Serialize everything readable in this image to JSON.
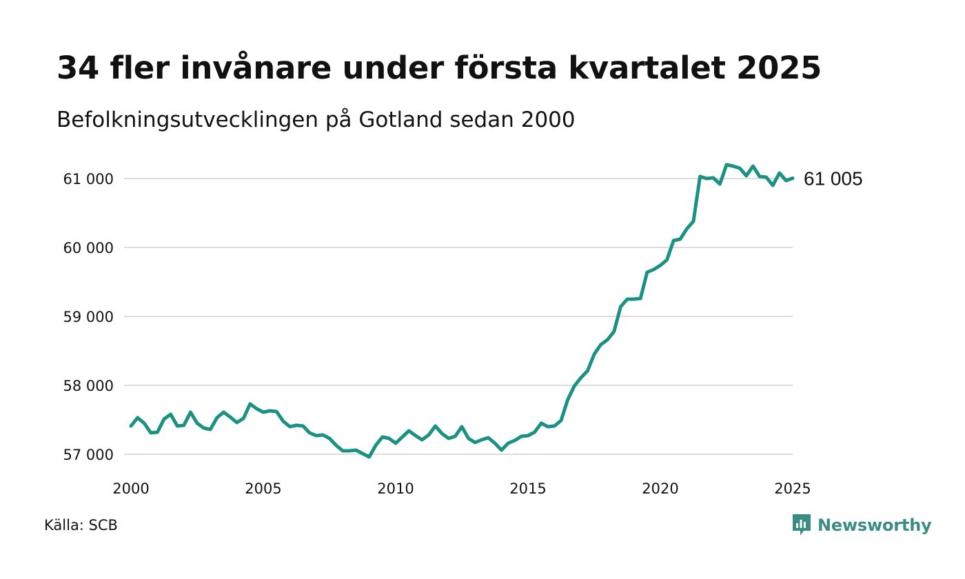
{
  "title": "34 fler invånare under första kvartalet 2025",
  "subtitle": "Befolkningsutvecklingen på Gotland sedan 2000",
  "source": "Källa: SCB",
  "brand": "Newsworthy",
  "colors": {
    "line": "#1a9182",
    "grid": "#dcdcdc",
    "brand": "#3a8c84"
  },
  "chart_data": {
    "type": "line",
    "ylim": [
      57000,
      61000
    ],
    "xlim": [
      2000,
      2025
    ],
    "yticks": [
      {
        "value": 57000,
        "label": "57 000"
      },
      {
        "value": 58000,
        "label": "58 000"
      },
      {
        "value": 59000,
        "label": "59 000"
      },
      {
        "value": 60000,
        "label": "60 000"
      },
      {
        "value": 61000,
        "label": "61 000"
      }
    ],
    "xticks": [
      {
        "value": 2000,
        "label": "2000"
      },
      {
        "value": 2005,
        "label": "2005"
      },
      {
        "value": 2010,
        "label": "2010"
      },
      {
        "value": 2015,
        "label": "2015"
      },
      {
        "value": 2020,
        "label": "2020"
      },
      {
        "value": 2025,
        "label": "2025"
      }
    ],
    "end_label": "61 005",
    "series": [
      {
        "x": [
          2000.0,
          2000.25,
          2000.5,
          2000.75,
          2001.0,
          2001.25,
          2001.5,
          2001.75,
          2002.0,
          2002.25,
          2002.5,
          2002.75,
          2003.0,
          2003.25,
          2003.5,
          2003.75,
          2004.0,
          2004.25,
          2004.5,
          2004.75,
          2005.0,
          2005.25,
          2005.5,
          2005.75,
          2006.0,
          2006.25,
          2006.5,
          2006.75,
          2007.0,
          2007.25,
          2007.5,
          2007.75,
          2008.0,
          2008.25,
          2008.5,
          2008.75,
          2009.0,
          2009.25,
          2009.5,
          2009.75,
          2010.0,
          2010.25,
          2010.5,
          2010.75,
          2011.0,
          2011.25,
          2011.5,
          2011.75,
          2012.0,
          2012.25,
          2012.5,
          2012.75,
          2013.0,
          2013.25,
          2013.5,
          2013.75,
          2014.0,
          2014.25,
          2014.5,
          2014.75,
          2015.0,
          2015.25,
          2015.5,
          2015.75,
          2016.0,
          2016.25,
          2016.5,
          2016.75,
          2017.0,
          2017.25,
          2017.5,
          2017.75,
          2018.0,
          2018.25,
          2018.5,
          2018.75,
          2019.0,
          2019.25,
          2019.5,
          2019.75,
          2020.0,
          2020.25,
          2020.5,
          2020.75,
          2021.0,
          2021.25,
          2021.5,
          2021.75,
          2022.0,
          2022.25,
          2022.5,
          2022.75,
          2023.0,
          2023.25,
          2023.5,
          2023.75,
          2024.0,
          2024.25,
          2024.5,
          2024.75,
          2025.0
        ],
        "values": [
          57410,
          57530,
          57450,
          57310,
          57320,
          57510,
          57580,
          57410,
          57420,
          57610,
          57450,
          57380,
          57360,
          57530,
          57610,
          57540,
          57460,
          57520,
          57730,
          57660,
          57610,
          57630,
          57620,
          57480,
          57400,
          57420,
          57410,
          57310,
          57270,
          57280,
          57230,
          57130,
          57050,
          57050,
          57060,
          57010,
          56960,
          57130,
          57250,
          57230,
          57160,
          57250,
          57340,
          57270,
          57210,
          57280,
          57410,
          57300,
          57230,
          57260,
          57400,
          57230,
          57170,
          57210,
          57240,
          57160,
          57060,
          57160,
          57200,
          57260,
          57270,
          57320,
          57450,
          57400,
          57410,
          57490,
          57790,
          57990,
          58110,
          58210,
          58450,
          58590,
          58660,
          58780,
          59140,
          59250,
          59250,
          59260,
          59640,
          59680,
          59740,
          59820,
          60100,
          60120,
          60270,
          60380,
          61030,
          61000,
          61010,
          60920,
          61200,
          61180,
          61150,
          61040,
          61180,
          61030,
          61020,
          60900,
          61080,
          60970,
          61005
        ]
      }
    ]
  }
}
